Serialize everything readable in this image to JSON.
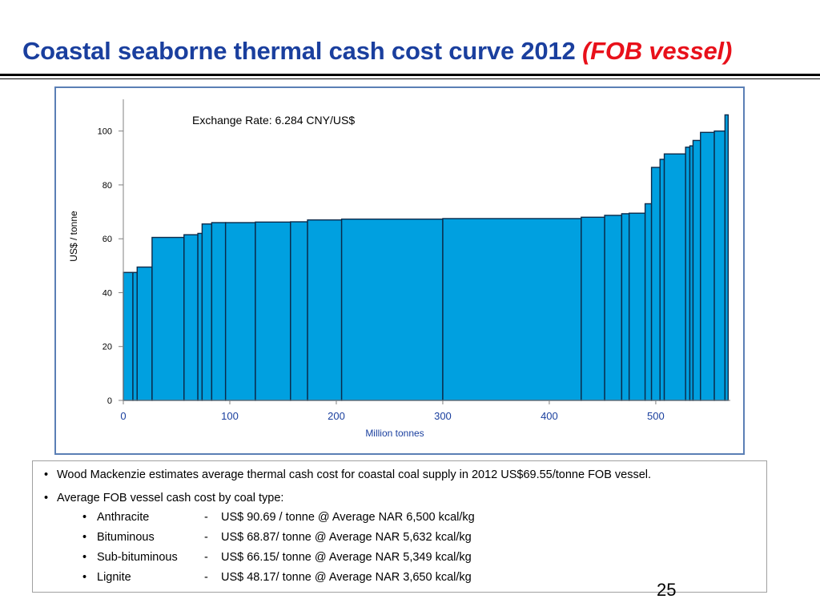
{
  "slide": {
    "title_main": "Coastal seaborne thermal cash cost curve 2012",
    "title_accent": "(FOB vessel)",
    "page_number": "25",
    "colors": {
      "title": "#1a3f9e",
      "accent": "#e8101a",
      "bar_fill": "#00a0e0",
      "bar_stroke": "#0a2a4a",
      "frame": "#5b7fb5"
    }
  },
  "chart_data": {
    "type": "bar",
    "subtype": "cost-curve",
    "annotation": "Exchange Rate: 6.284 CNY/US$",
    "xlabel": "Million tonnes",
    "ylabel": "US$ / tonne",
    "xlim": [
      0,
      570
    ],
    "ylim": [
      0,
      110
    ],
    "xticks": [
      0,
      100,
      200,
      300,
      400,
      500
    ],
    "yticks": [
      0,
      20,
      40,
      60,
      80,
      100
    ],
    "grid": false,
    "bars": [
      {
        "x0": 0,
        "x1": 9,
        "y": 47.5
      },
      {
        "x0": 9,
        "x1": 13,
        "y": 47.5
      },
      {
        "x0": 13,
        "x1": 27,
        "y": 49.5
      },
      {
        "x0": 27,
        "x1": 57,
        "y": 60.5
      },
      {
        "x0": 57,
        "x1": 70,
        "y": 61.5
      },
      {
        "x0": 70,
        "x1": 74,
        "y": 62
      },
      {
        "x0": 74,
        "x1": 83,
        "y": 65.5
      },
      {
        "x0": 83,
        "x1": 96,
        "y": 66
      },
      {
        "x0": 96,
        "x1": 124,
        "y": 66
      },
      {
        "x0": 124,
        "x1": 157,
        "y": 66.2
      },
      {
        "x0": 157,
        "x1": 173,
        "y": 66.3
      },
      {
        "x0": 173,
        "x1": 205,
        "y": 67
      },
      {
        "x0": 205,
        "x1": 300,
        "y": 67.3
      },
      {
        "x0": 300,
        "x1": 430,
        "y": 67.5
      },
      {
        "x0": 430,
        "x1": 452,
        "y": 68
      },
      {
        "x0": 452,
        "x1": 468,
        "y": 68.7
      },
      {
        "x0": 468,
        "x1": 475,
        "y": 69.3
      },
      {
        "x0": 475,
        "x1": 490,
        "y": 69.5
      },
      {
        "x0": 490,
        "x1": 496,
        "y": 73
      },
      {
        "x0": 496,
        "x1": 504,
        "y": 86.5
      },
      {
        "x0": 504,
        "x1": 508,
        "y": 89.5
      },
      {
        "x0": 508,
        "x1": 528,
        "y": 91.5
      },
      {
        "x0": 528,
        "x1": 532,
        "y": 94
      },
      {
        "x0": 532,
        "x1": 535,
        "y": 94.5
      },
      {
        "x0": 535,
        "x1": 542,
        "y": 96.5
      },
      {
        "x0": 542,
        "x1": 555,
        "y": 99.5
      },
      {
        "x0": 555,
        "x1": 565,
        "y": 100
      },
      {
        "x0": 565,
        "x1": 568,
        "y": 106
      }
    ]
  },
  "notes": {
    "bullet1": "Wood Mackenzie estimates average thermal cash cost for coastal coal supply in 2012 US$69.55/tonne FOB vessel.",
    "bullet2": "Average FOB vessel cash cost by coal type:",
    "sub_items": [
      {
        "name": "Anthracite",
        "dash": "-",
        "value": "US$ 90.69 / tonne @ Average NAR 6,500 kcal/kg"
      },
      {
        "name": "Bituminous",
        "dash": "-",
        "value": "US$ 68.87/ tonne @ Average NAR 5,632 kcal/kg"
      },
      {
        "name": "Sub-bituminous",
        "dash": "-",
        "value": "US$ 66.15/ tonne @ Average NAR 5,349 kcal/kg"
      },
      {
        "name": "Lignite",
        "dash": "-",
        "value": "US$ 48.17/ tonne @ Average NAR 3,650 kcal/kg"
      }
    ]
  }
}
